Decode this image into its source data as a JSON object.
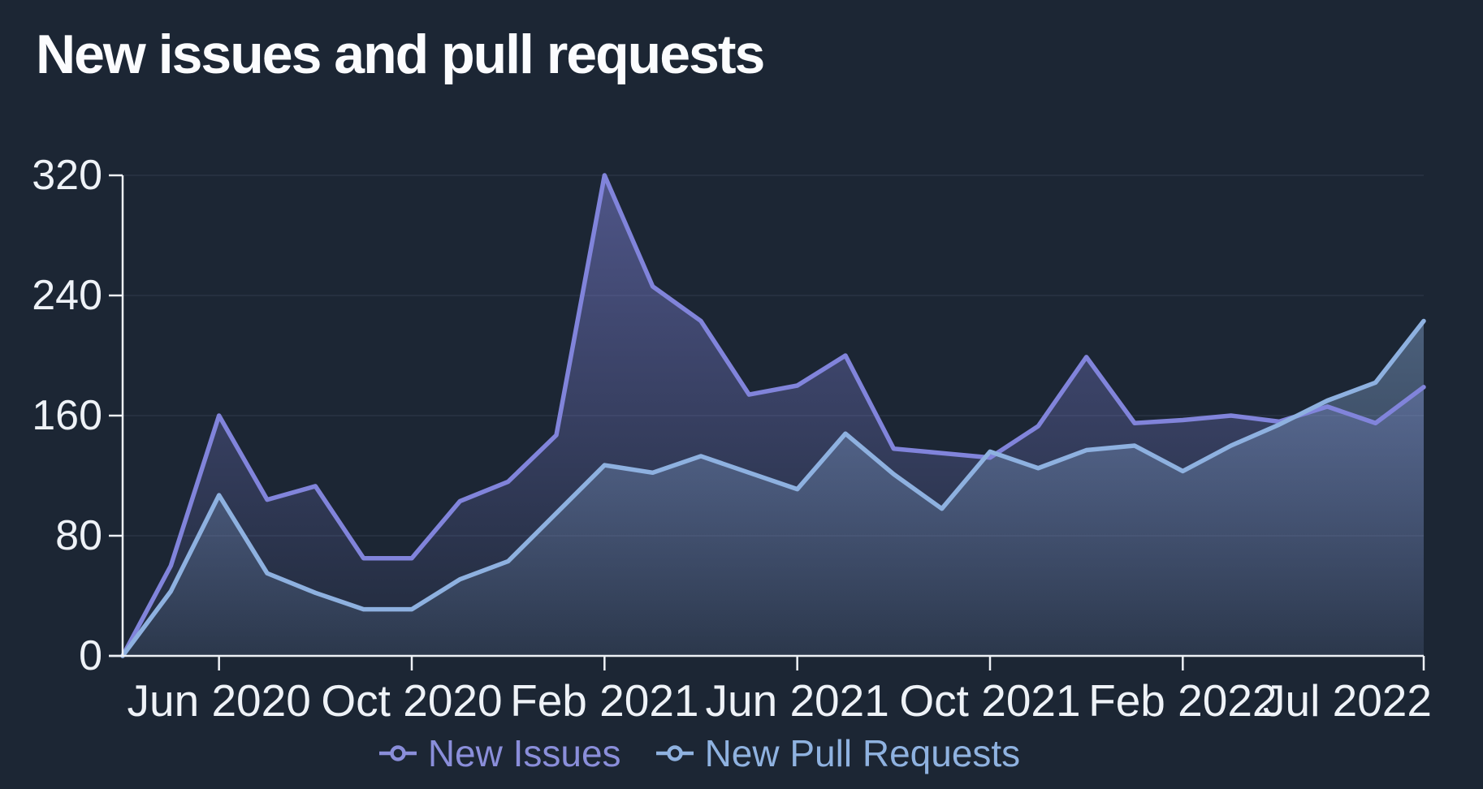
{
  "title": "New issues and pull requests",
  "background_color": "#1c2634",
  "axis_color": "#eef1f6",
  "gridline_color": "#2a3444",
  "legend": {
    "items": [
      {
        "label": "New Issues",
        "color": "#8a8eda",
        "marker": "open-circle-line"
      },
      {
        "label": "New Pull Requests",
        "color": "#8fb2e0",
        "marker": "open-circle-line"
      }
    ]
  },
  "chart_data": {
    "type": "area",
    "title": "New issues and pull requests",
    "xlabel": "",
    "ylabel": "",
    "ylim": [
      0,
      320
    ],
    "y_ticks": [
      0,
      80,
      160,
      240,
      320
    ],
    "grid": "horizontal",
    "legend_position": "bottom-center",
    "x": [
      "Apr 2020",
      "May 2020",
      "Jun 2020",
      "Jul 2020",
      "Aug 2020",
      "Sep 2020",
      "Oct 2020",
      "Nov 2020",
      "Dec 2020",
      "Jan 2021",
      "Feb 2021",
      "Mar 2021",
      "Apr 2021",
      "May 2021",
      "Jun 2021",
      "Jul 2021",
      "Aug 2021",
      "Sep 2021",
      "Oct 2021",
      "Nov 2021",
      "Dec 2021",
      "Jan 2022",
      "Feb 2022",
      "Mar 2022",
      "Apr 2022",
      "May 2022",
      "Jun 2022",
      "Jul 2022"
    ],
    "x_ticks": [
      {
        "index": 2,
        "label": "Jun 2020"
      },
      {
        "index": 6,
        "label": "Oct 2020"
      },
      {
        "index": 10,
        "label": "Feb 2021"
      },
      {
        "index": 14,
        "label": "Jun 2021"
      },
      {
        "index": 18,
        "label": "Oct 2021"
      },
      {
        "index": 22,
        "label": "Feb 2022"
      },
      {
        "index": 27,
        "label": "Jul 2022"
      }
    ],
    "series": [
      {
        "name": "New Issues",
        "color": "#8184db",
        "fill": "#8184db",
        "values": [
          0,
          60,
          160,
          104,
          113,
          65,
          65,
          103,
          116,
          147,
          320,
          246,
          223,
          174,
          180,
          200,
          138,
          135,
          132,
          153,
          199,
          155,
          157,
          160,
          156,
          166,
          155,
          179
        ]
      },
      {
        "name": "New Pull Requests",
        "color": "#8eb1e0",
        "fill": "#8eb1e0",
        "values": [
          0,
          43,
          107,
          55,
          42,
          31,
          31,
          51,
          63,
          95,
          127,
          122,
          133,
          122,
          111,
          148,
          121,
          98,
          136,
          125,
          137,
          140,
          123,
          140,
          154,
          170,
          182,
          223
        ]
      }
    ]
  }
}
